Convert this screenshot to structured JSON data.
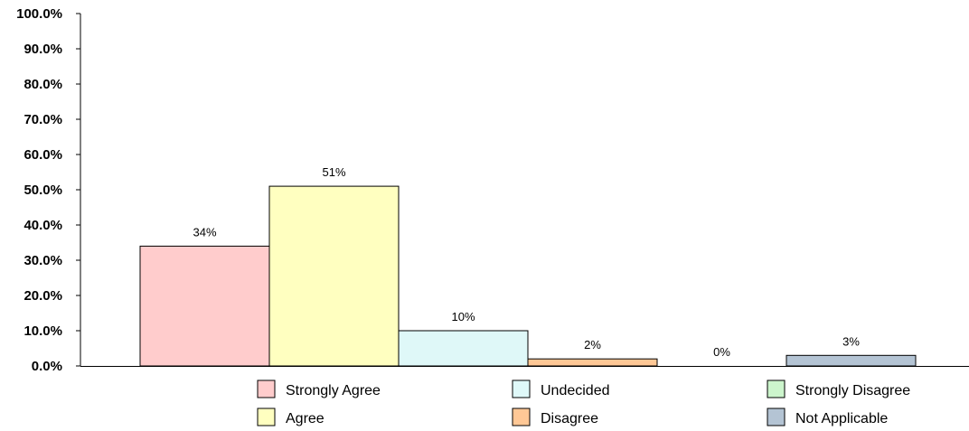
{
  "chart_data": {
    "type": "bar",
    "categories": [
      "Strongly Agree",
      "Agree",
      "Undecided",
      "Disagree",
      "Strongly Disagree",
      "Not Applicable"
    ],
    "values": [
      34,
      51,
      10,
      2,
      0,
      3
    ],
    "value_labels": [
      "34%",
      "51%",
      "10%",
      "2%",
      "0%",
      "3%"
    ],
    "colors": [
      "#ffcccc",
      "#ffffc0",
      "#dff8f8",
      "#ffc896",
      "#ccf5cc",
      "#b4c4d4"
    ],
    "ylim": [
      0,
      100
    ],
    "yticks": [
      0,
      10,
      20,
      30,
      40,
      50,
      60,
      70,
      80,
      90,
      100
    ],
    "ytick_labels": [
      "0.0%",
      "10.0%",
      "20.0%",
      "30.0%",
      "40.0%",
      "50.0%",
      "60.0%",
      "70.0%",
      "80.0%",
      "90.0%",
      "100.0%"
    ],
    "grid": false,
    "legend": {
      "placement": "bottom",
      "entries": [
        "Strongly Agree",
        "Agree",
        "Undecided",
        "Disagree",
        "Strongly Disagree",
        "Not Applicable"
      ]
    },
    "title": "",
    "xlabel": "",
    "ylabel": ""
  }
}
